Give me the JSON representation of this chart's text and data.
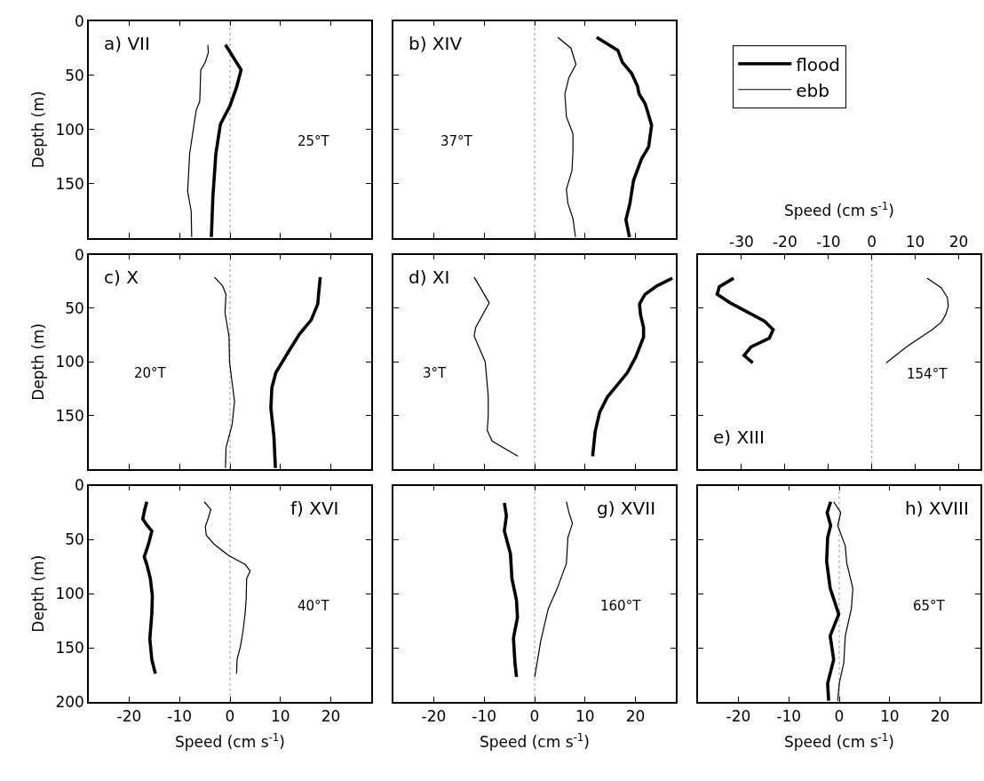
{
  "chart_data": [
    {
      "type": "line",
      "xlim": [
        -28,
        28
      ],
      "xticks": [
        -20,
        -10,
        0,
        10,
        20
      ],
      "ylim": [
        200,
        0
      ],
      "yticks": [
        0,
        50,
        100,
        150
      ],
      "ylabel": "Depth (m)",
      "tick_labels": "y",
      "legend": "right",
      "annotations": [
        "a) VII",
        "25°T"
      ],
      "ref_lines": [
        {
          "axis": "x",
          "value": 0,
          "color": "#aaaaaa",
          "line_style": "dotted"
        }
      ],
      "series": [
        {
          "name": "flood",
          "color": "#000000",
          "x": [
            -0.9,
            2.2,
            1.3,
            0,
            -1.9,
            -2.8,
            -3.4,
            -3.7
          ],
          "values": [
            22,
            45,
            61,
            78,
            95,
            122,
            162,
            199
          ]
        },
        {
          "name": "ebb",
          "color": "#000000",
          "x": [
            -4.4,
            -4.3,
            -4.9,
            -5.8,
            -6.0,
            -6.7,
            -8.0,
            -8.4,
            -7.7,
            -7.6
          ],
          "values": [
            22,
            29,
            38,
            45,
            74,
            82,
            122,
            157,
            175,
            199
          ]
        }
      ]
    },
    {
      "type": "line",
      "xlim": [
        -28,
        28
      ],
      "xticks": [
        -20,
        -10,
        0,
        10,
        20
      ],
      "ylim": [
        200,
        0
      ],
      "yticks": [
        0,
        50,
        100,
        150
      ],
      "tick_labels": false,
      "annotations": [
        "b) XIV",
        "37°T"
      ],
      "ref_lines": [
        {
          "axis": "x",
          "value": 0,
          "color": "#aaaaaa",
          "line_style": "dotted"
        }
      ],
      "series": [
        {
          "color": "#000000",
          "x": [
            12.3,
            16.5,
            17.4,
            19.2,
            20.4,
            20.7,
            21.9,
            22.5,
            23.2,
            22.6,
            21.2,
            19.6,
            18.9,
            18.1,
            18.8
          ],
          "values": [
            15,
            27,
            38,
            48,
            60,
            67,
            76,
            85,
            96,
            116,
            127,
            147,
            168,
            183,
            199
          ]
        },
        {
          "color": "#000000",
          "x": [
            4.6,
            7.2,
            8.2,
            6.8,
            6.0,
            6.3,
            7.6,
            7.6,
            7.4,
            6.3,
            6.6,
            7.6,
            8.1
          ],
          "values": [
            15,
            25,
            40,
            52,
            67,
            88,
            104,
            121,
            138,
            155,
            168,
            182,
            199
          ]
        }
      ]
    },
    {
      "type": "line",
      "xlim": [
        -28,
        28
      ],
      "xticks": [
        -20,
        -10,
        0,
        10,
        20
      ],
      "ylim": [
        200,
        0
      ],
      "yticks": [
        0,
        50,
        100,
        150
      ],
      "ylabel": "Depth (m)",
      "tick_labels": "y",
      "annotations": [
        "c) X",
        "20°T"
      ],
      "ref_lines": [
        {
          "axis": "x",
          "value": 0,
          "color": "#aaaaaa",
          "line_style": "dotted"
        }
      ],
      "series": [
        {
          "color": "#000000",
          "x": [
            17.9,
            17.6,
            17.4,
            16.1,
            13.8,
            11.8,
            9.1,
            8.3,
            8.1,
            8.7,
            9.0
          ],
          "values": [
            21,
            35,
            46,
            61,
            74,
            89,
            110,
            124,
            143,
            169,
            199
          ]
        },
        {
          "color": "#000000",
          "x": [
            -3.1,
            -1.5,
            -0.8,
            -1.0,
            -0.2,
            -0.1,
            0.9,
            0.4,
            -0.8,
            -0.9
          ],
          "values": [
            21,
            29,
            37,
            54,
            76,
            100,
            137,
            159,
            180,
            199
          ]
        }
      ]
    },
    {
      "type": "line",
      "xlim": [
        -28,
        28
      ],
      "xticks": [
        -20,
        -10,
        0,
        10,
        20
      ],
      "ylim": [
        200,
        0
      ],
      "yticks": [
        0,
        50,
        100,
        150
      ],
      "tick_labels": false,
      "annotations": [
        "d) XI",
        "3°T"
      ],
      "ref_lines": [
        {
          "axis": "x",
          "value": 0,
          "color": "#aaaaaa",
          "line_style": "dotted"
        }
      ],
      "series": [
        {
          "color": "#000000",
          "x": [
            27.3,
            24.3,
            21.9,
            20.8,
            21.0,
            21.6,
            21.6,
            20.1,
            18.4,
            14.4,
            12.9,
            12.0,
            11.5
          ],
          "values": [
            22,
            29,
            37,
            46,
            56,
            68,
            77,
            95,
            110,
            133,
            147,
            165,
            188
          ]
        },
        {
          "color": "#000000",
          "x": [
            -12.0,
            -9.0,
            -11.7,
            -12.0,
            -9.8,
            -9.2,
            -9.2,
            -9.4,
            -8.4,
            -3.3
          ],
          "values": [
            21,
            45,
            68,
            76,
            100,
            132,
            151,
            164,
            174,
            188
          ]
        }
      ]
    },
    {
      "type": "line",
      "xlim": [
        -40,
        25
      ],
      "xticks": [
        -30,
        -20,
        -10,
        0,
        10,
        20
      ],
      "xlabel": "Speed (cm s$^{-1}$)",
      "ylim": [
        200,
        0
      ],
      "yticks": [
        0,
        50,
        100,
        150
      ],
      "tick_labels": "x",
      "annotations": [
        "e) XIII",
        "154°T"
      ],
      "ref_lines": [
        {
          "axis": "x",
          "value": 0,
          "color": "#aaaaaa",
          "line_style": "dotted"
        }
      ],
      "series": [
        {
          "color": "#000000",
          "x": [
            -31.8,
            -35.1,
            -35.6,
            -32.6,
            -24.7,
            -22.7,
            -23.6,
            -27.8,
            -29.4,
            -27.4
          ],
          "values": [
            22,
            30,
            37,
            45,
            62,
            70,
            78,
            86,
            94,
            101
          ]
        },
        {
          "color": "#000000",
          "x": [
            12.7,
            16.0,
            17.4,
            17.6,
            17.0,
            16.0,
            13.9,
            8.0,
            3.3
          ],
          "values": [
            22,
            31,
            40,
            48,
            56,
            63,
            70,
            86,
            101
          ]
        }
      ]
    },
    {
      "type": "line",
      "xlim": [
        -28,
        28
      ],
      "xticks": [
        -20,
        -10,
        0,
        10,
        20
      ],
      "xlabel": "Speed (cm s$^{-1}$)",
      "ylim": [
        200,
        0
      ],
      "yticks": [
        0,
        50,
        100,
        150,
        200
      ],
      "ylabel": "Depth (m)",
      "annotations": [
        "f) XVI",
        "40°T"
      ],
      "ref_lines": [
        {
          "axis": "x",
          "value": 0,
          "color": "#aaaaaa",
          "line_style": "dotted"
        }
      ],
      "series": [
        {
          "color": "#000000",
          "x": [
            -16.5,
            -16.9,
            -17.3,
            -16.4,
            -15.5,
            -16.1,
            -17.0,
            -16.5,
            -15.8,
            -15.4,
            -15.5,
            -15.9,
            -15.5,
            -14.8
          ],
          "values": [
            15,
            22,
            31,
            37,
            42,
            53,
            66,
            73,
            86,
            102,
            118,
            142,
            161,
            174
          ]
        },
        {
          "color": "#000000",
          "x": [
            -5.1,
            -3.8,
            -4.3,
            -4.9,
            -4.7,
            -3.2,
            -0.2,
            3.0,
            4.0,
            3.3,
            3.2,
            3.0,
            2.6,
            2.1,
            1.4,
            1.3
          ],
          "values": [
            15,
            22,
            30,
            38,
            46,
            54,
            65,
            73,
            79,
            86,
            105,
            118,
            134,
            148,
            161,
            174
          ]
        }
      ]
    },
    {
      "type": "line",
      "xlim": [
        -28,
        28
      ],
      "xticks": [
        -20,
        -10,
        0,
        10,
        20
      ],
      "xlabel": "Speed (cm s$^{-1}$)",
      "ylim": [
        200,
        0
      ],
      "yticks": [
        0,
        50,
        100,
        150,
        200
      ],
      "tick_labels": "x",
      "annotations": [
        "g) XVII",
        "160°T"
      ],
      "ref_lines": [
        {
          "axis": "x",
          "value": 0,
          "color": "#aaaaaa",
          "line_style": "dotted"
        }
      ],
      "series": [
        {
          "color": "#000000",
          "x": [
            -6.0,
            -5.6,
            -6.0,
            -4.8,
            -4.5,
            -3.6,
            -3.4,
            -4.2,
            -3.9,
            -3.6
          ],
          "values": [
            16,
            28,
            42,
            63,
            86,
            106,
            122,
            141,
            164,
            177
          ]
        },
        {
          "color": "#000000",
          "x": [
            6.3,
            6.8,
            7.5,
            6.6,
            6.3,
            4.5,
            2.7,
            1.2,
            0.6,
            0.0
          ],
          "values": [
            15,
            25,
            35,
            48,
            72,
            95,
            114,
            144,
            161,
            177
          ]
        }
      ]
    },
    {
      "type": "line",
      "xlim": [
        -28,
        28
      ],
      "xticks": [
        -20,
        -10,
        0,
        10,
        20
      ],
      "xlabel": "Speed (cm s$^{-1}$)",
      "ylim": [
        200,
        0
      ],
      "yticks": [
        0,
        50,
        100,
        150,
        200
      ],
      "tick_labels": "x",
      "annotations": [
        "h) XVIII",
        "65°T"
      ],
      "ref_lines": [
        {
          "axis": "x",
          "value": 0,
          "color": "#aaaaaa",
          "line_style": "dotted"
        }
      ],
      "series": [
        {
          "color": "#000000",
          "x": [
            -1.7,
            -2.4,
            -1.7,
            -2.3,
            -2.5,
            -1.8,
            -0.1,
            -1.8,
            -1.1,
            -2.3,
            -2.1
          ],
          "values": [
            15,
            25,
            37,
            48,
            70,
            95,
            119,
            139,
            161,
            183,
            199
          ]
        },
        {
          "color": "#000000",
          "x": [
            -1.1,
            0.3,
            -0.3,
            1.2,
            1.5,
            2.7,
            2.4,
            1.2,
            0.9,
            0.0,
            -0.3
          ],
          "values": [
            15,
            25,
            37,
            56,
            72,
            95,
            114,
            139,
            164,
            183,
            199
          ]
        }
      ]
    }
  ]
}
